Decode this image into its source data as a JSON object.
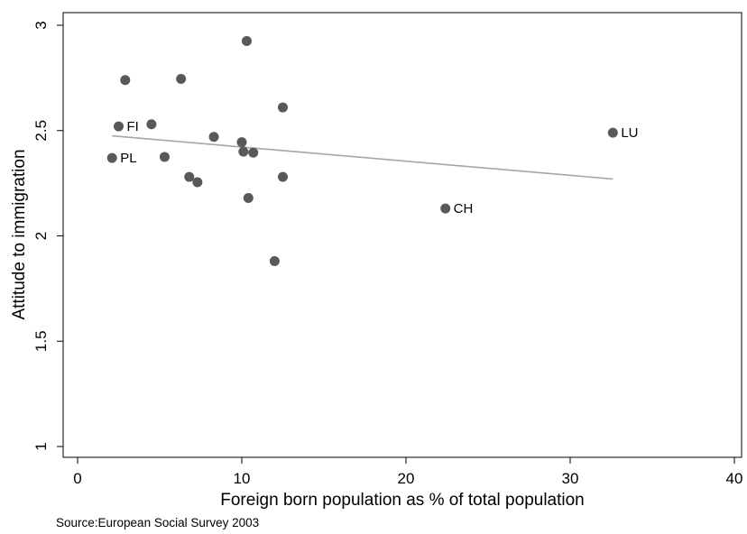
{
  "chart_data": {
    "type": "scatter",
    "title": "",
    "xlabel": "Foreign born population as % of total population",
    "ylabel": "Attitude to immigration",
    "xlim": [
      0,
      40
    ],
    "ylim": [
      1,
      3
    ],
    "xticks": [
      0,
      10,
      20,
      30,
      40
    ],
    "yticks": [
      1,
      1.5,
      2,
      2.5,
      3
    ],
    "grid": false,
    "legend": "none",
    "note": "Source:European Social Survey 2003",
    "marker_color": "#595959",
    "fit_line_color": "#a6a6a6",
    "points": [
      {
        "x": 2.1,
        "y": 2.37,
        "label": "PL"
      },
      {
        "x": 2.5,
        "y": 2.52,
        "label": "FI"
      },
      {
        "x": 2.9,
        "y": 2.74,
        "label": ""
      },
      {
        "x": 4.5,
        "y": 2.53,
        "label": ""
      },
      {
        "x": 5.3,
        "y": 2.375,
        "label": ""
      },
      {
        "x": 6.3,
        "y": 2.745,
        "label": ""
      },
      {
        "x": 6.8,
        "y": 2.28,
        "label": ""
      },
      {
        "x": 7.3,
        "y": 2.255,
        "label": ""
      },
      {
        "x": 8.3,
        "y": 2.47,
        "label": ""
      },
      {
        "x": 10.0,
        "y": 2.445,
        "label": ""
      },
      {
        "x": 10.1,
        "y": 2.4,
        "label": ""
      },
      {
        "x": 10.3,
        "y": 2.925,
        "label": ""
      },
      {
        "x": 10.4,
        "y": 2.18,
        "label": ""
      },
      {
        "x": 10.7,
        "y": 2.395,
        "label": ""
      },
      {
        "x": 12.0,
        "y": 1.88,
        "label": ""
      },
      {
        "x": 12.5,
        "y": 2.61,
        "label": ""
      },
      {
        "x": 12.5,
        "y": 2.28,
        "label": ""
      },
      {
        "x": 22.4,
        "y": 2.13,
        "label": "CH"
      },
      {
        "x": 32.6,
        "y": 2.49,
        "label": "LU"
      }
    ],
    "fit_line": {
      "x": [
        2.1,
        32.6
      ],
      "y": [
        2.475,
        2.27
      ]
    }
  }
}
